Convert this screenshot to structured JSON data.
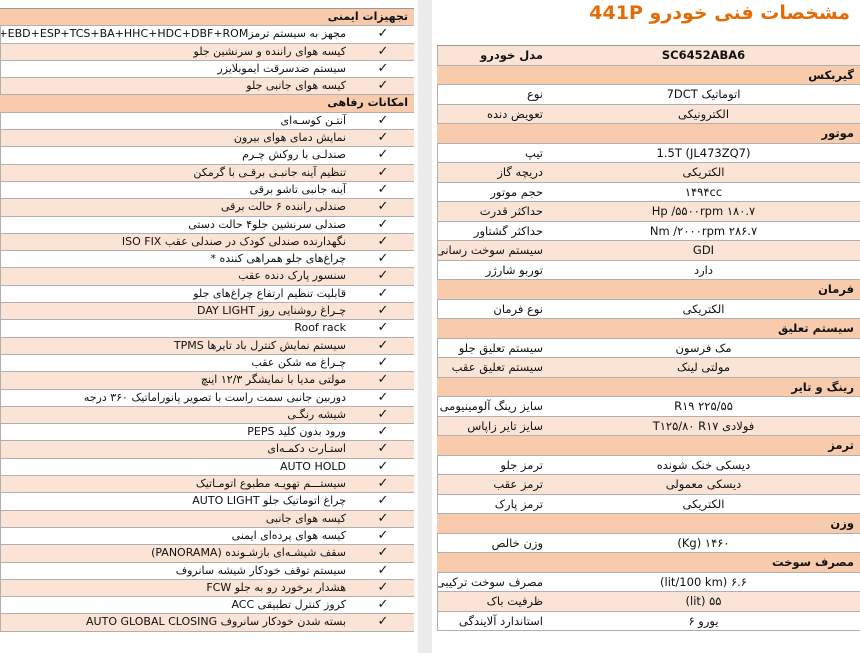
{
  "equipment": {
    "sections": [
      {
        "title": "تجهیزات ایمنی",
        "rows": [
          {
            "label": "مجهز به سیستم ترمزABS+EBD+ESP+TCS+BA+HHC+HDC+DBF+ROM",
            "check": "✓"
          },
          {
            "label": "کیسه هوای راننده و سرنشین جلو",
            "check": "✓"
          },
          {
            "label": "سیستم ضدسرقت ایموبلایزر",
            "check": "✓"
          },
          {
            "label": "کیسه هوای جانبی جلو",
            "check": "✓"
          }
        ]
      },
      {
        "title": "امکانات رفاهی",
        "rows": [
          {
            "label": "آنتـن کوسـه‌ای",
            "check": "✓"
          },
          {
            "label": "نمایش دمای هوای بیرون",
            "check": "✓"
          },
          {
            "label": "صندلـی با روکش چـرم",
            "check": "✓"
          },
          {
            "label": "تنظیم آینه جانبـی برقـی با گرمکن",
            "check": "✓"
          },
          {
            "label": "آینه جانبی تاشو برقی",
            "check": "✓"
          },
          {
            "label": "صندلی راننده ۶ حالت برقی",
            "check": "✓"
          },
          {
            "label": "صندلی سرنشین جلو۴ حالت دستی",
            "check": "✓"
          },
          {
            "label": "نگهدارنده صندلی کودک در صندلی عقب ISO FIX",
            "check": "✓"
          },
          {
            "label": "چراغ‌های جلو همراهی کننده *",
            "check": "✓"
          },
          {
            "label": "سنسور پارک دنده عقب",
            "check": "✓"
          },
          {
            "label": "قابلیت تنظیم ارتفاع چراغ‌های جلو",
            "check": "✓"
          },
          {
            "label": "چـراغ روشنایی روز  DAY LIGHT",
            "check": "✓"
          },
          {
            "label": "Roof rack",
            "check": "✓"
          },
          {
            "label": "سیستم نمایش کنترل باد تایرها  TPMS",
            "check": "✓"
          },
          {
            "label": "چـراغ مه شکن عقب",
            "check": "✓"
          },
          {
            "label": "مولتی مدیا با نمایشگر ۱۲/۳ اینچ",
            "check": "✓"
          },
          {
            "label": "دوربین جانبی سمت راست با تصویر پانوراماتیک ۳۶۰ درجه",
            "check": "✓"
          },
          {
            "label": "شیشه رنگـی",
            "check": "✓"
          },
          {
            "label": "ورود بدون کلید PEPS",
            "check": "✓"
          },
          {
            "label": "استـارت دکمـه‌ای",
            "check": "✓"
          },
          {
            "label": "AUTO HOLD",
            "check": "✓"
          },
          {
            "label": "سیستـــم تهویـه مطبوع اتومـاتیک",
            "check": "✓"
          },
          {
            "label": "چراغ اتوماتیک جلو  AUTO LIGHT",
            "check": "✓"
          },
          {
            "label": "کیسه هوای جانبی",
            "check": "✓"
          },
          {
            "label": "کیسه هوای پرده‌ای ایمنی",
            "check": "✓"
          },
          {
            "label": "سقف شیشـه‌ای بازشـونده (PANORAMA)",
            "check": "✓"
          },
          {
            "label": "سیستم توقف خودکار شیشه سانروف",
            "check": "✓"
          },
          {
            "label": "هشدار برخورد رو به جلو FCW",
            "check": "✓"
          },
          {
            "label": "کروز کنترل تطبیقی ACC",
            "check": "✓"
          },
          {
            "label": "بسته شدن خودکار سانروف AUTO GLOBAL CLOSING",
            "check": "✓"
          }
        ]
      }
    ]
  },
  "specs": {
    "title": "مشخصات فنی خودرو 441P",
    "header": {
      "label": "مدل خودرو",
      "value": "SC6452ABA6"
    },
    "sections": [
      {
        "title": "گیربکس",
        "rows": [
          {
            "label": "نوع",
            "value": "اتوماتیک 7DCT"
          },
          {
            "label": "تعویض دنده",
            "value": "الکترونیکی"
          }
        ]
      },
      {
        "title": "موتور",
        "rows": [
          {
            "label": "تیپ",
            "value": "1.5T (JL473ZQ7)"
          },
          {
            "label": "دریچه گاز",
            "value": "الکتریکی"
          },
          {
            "label": "حجم موتور",
            "value": "۱۴۹۴cc"
          },
          {
            "label": "حداکثر قدرت",
            "value": "۱۸۰.۷ Hp /۵۵۰۰rpm"
          },
          {
            "label": "حداکثر گشتاور",
            "value": "۲۸۶.۷ Nm /۲۰۰۰rpm"
          },
          {
            "label": "سیستم سوخت رسانی",
            "value": "GDI"
          },
          {
            "label": "توربو شارژر",
            "value": "دارد"
          }
        ]
      },
      {
        "title": "فرمان",
        "rows": [
          {
            "label": "نوع فرمان",
            "value": "الکتریکی"
          }
        ]
      },
      {
        "title": "سیستم تعلیق",
        "rows": [
          {
            "label": "سیستم تعلیق جلو",
            "value": "مک فرسون"
          },
          {
            "label": "سیستم تعلیق عقب",
            "value": "مولتی لینک"
          }
        ]
      },
      {
        "title": "رینگ و تایر",
        "rows": [
          {
            "label": "سایز رینگ آلومینیومی",
            "value": "۲۲۵/۵۵ R۱۹"
          },
          {
            "label": "سایز تایر زاپاس",
            "value": "فولادی T۱۲۵/۸۰ R۱۷"
          }
        ]
      },
      {
        "title": "ترمز",
        "rows": [
          {
            "label": "ترمز جلو",
            "value": "دیسکی خنک شونده"
          },
          {
            "label": "ترمز عقب",
            "value": "دیسکی معمولی"
          },
          {
            "label": "ترمز پارک",
            "value": "الکتریکی"
          }
        ]
      },
      {
        "title": "وزن",
        "rows": [
          {
            "label": "وزن خالص",
            "value": "۱۴۶۰ (Kg)"
          }
        ]
      },
      {
        "title": "مصرف سوخت",
        "rows": [
          {
            "label": "مصرف سوخت ترکیبی",
            "value": "۶.۶ (lit/100 km)"
          },
          {
            "label": "ظرفیت باک",
            "value": "۵۵ (lit)"
          },
          {
            "label": "استاندارد آلایندگی",
            "value": "یورو ۶"
          }
        ]
      }
    ]
  }
}
